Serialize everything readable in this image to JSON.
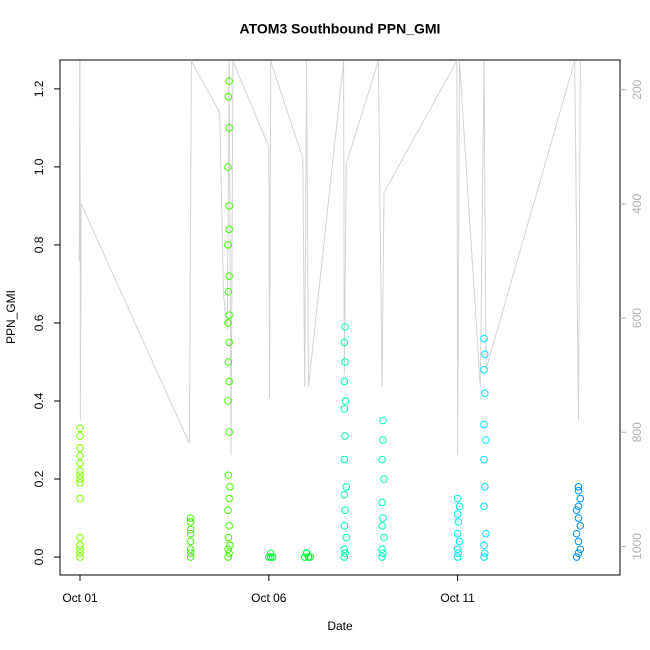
{
  "chart_data": {
    "type": "scatter",
    "title": "ATOM3 Southbound PPN_GMI",
    "x_label": "Date",
    "y_label": "PPN_GMI",
    "xlim": [
      0.47,
      15.3
    ],
    "xticks": [
      {
        "value": 1,
        "label": "Oct 01"
      },
      {
        "value": 6,
        "label": "Oct 06"
      },
      {
        "value": 11,
        "label": "Oct 11"
      }
    ],
    "ylim": [
      -0.046,
      1.274
    ],
    "yticks": [
      {
        "value": 0,
        "label": "0.0"
      },
      0.2,
      0.4,
      0.6,
      0.8,
      {
        "value": 1,
        "label": "1.0"
      },
      1.2
    ],
    "y2lim": [
      1050,
      148
    ],
    "y2ticks": [
      200,
      400,
      600,
      800,
      1000
    ],
    "series": [
      {
        "color": "#d3d3d3",
        "axis": "y2",
        "x": [
          0.98,
          0.99,
          1.0,
          1.01,
          1.03,
          3.9,
          3.92,
          3.95,
          4.7,
          4.8,
          4.9,
          4.95,
          5.0,
          5.05,
          6.0,
          6.02,
          6.05,
          6.9,
          6.95,
          7.0,
          7.05,
          7.98,
          8.0,
          8.05,
          8.9,
          9.0,
          9.05,
          10.98,
          11.0,
          11.05,
          11.6,
          11.7,
          11.75,
          14.1,
          14.2,
          14.25
        ],
        "values": [
          500,
          150,
          150,
          780,
          400,
          820,
          500,
          150,
          240,
          560,
          620,
          150,
          840,
          150,
          300,
          740,
          150,
          320,
          720,
          150,
          720,
          150,
          700,
          330,
          150,
          720,
          380,
          150,
          840,
          150,
          720,
          150,
          690,
          150,
          780,
          150
        ]
      },
      {
        "color": "#80ff00",
        "x": [
          1.0,
          1.0,
          1.0,
          1.0,
          1.0,
          1.0,
          1.0,
          1.0,
          1.0,
          1.0,
          1.0,
          1.0,
          1.0,
          1.0,
          1.0
        ],
        "values": [
          0.0,
          0.01,
          0.02,
          0.03,
          0.05,
          0.15,
          0.19,
          0.2,
          0.21,
          0.22,
          0.24,
          0.26,
          0.28,
          0.31,
          0.33
        ]
      },
      {
        "color": "#40ff00",
        "x": [
          3.93,
          3.93,
          3.93,
          3.93,
          3.93,
          3.93,
          3.93,
          3.93,
          4.92,
          4.95,
          4.92,
          4.97,
          4.93,
          4.95,
          4.92,
          4.95,
          4.97,
          4.93,
          4.95,
          4.92,
          4.95,
          4.93,
          4.95,
          4.92,
          4.95,
          4.93,
          4.95,
          4.92,
          4.95,
          4.95,
          4.92,
          4.95,
          4.93,
          4.95
        ],
        "values": [
          0.0,
          0.01,
          0.02,
          0.04,
          0.06,
          0.07,
          0.09,
          0.1,
          0.0,
          0.01,
          0.02,
          0.03,
          0.05,
          0.08,
          0.12,
          0.15,
          0.18,
          0.21,
          0.32,
          0.4,
          0.45,
          0.5,
          0.55,
          0.6,
          0.62,
          0.68,
          0.72,
          0.8,
          0.84,
          0.9,
          1.0,
          1.1,
          1.18,
          1.22
        ]
      },
      {
        "color": "#00ff30",
        "x": [
          6.0,
          6.05,
          6.1,
          6.05,
          6.95,
          7.0,
          7.05,
          7.1,
          7.0
        ],
        "values": [
          0.0,
          0.0,
          0.0,
          0.01,
          0.0,
          0.01,
          0.0,
          0.0,
          0.01
        ]
      },
      {
        "color": "#00ffa0",
        "x": [
          8.0,
          8.02,
          8.0,
          8.05,
          8.0,
          8.02,
          8.0,
          8.05,
          8.0,
          8.02,
          8.0,
          8.03,
          8.0,
          8.02,
          8.0,
          8.02
        ],
        "values": [
          0.0,
          0.01,
          0.02,
          0.05,
          0.08,
          0.12,
          0.16,
          0.18,
          0.25,
          0.31,
          0.38,
          0.4,
          0.45,
          0.5,
          0.55,
          0.59
        ]
      },
      {
        "color": "#00ffc0",
        "x": [
          9.0,
          9.02,
          9.0,
          9.05,
          9.0,
          9.02,
          9.0,
          9.05,
          9.0,
          9.02,
          9.02
        ],
        "values": [
          0.0,
          0.01,
          0.02,
          0.05,
          0.08,
          0.1,
          0.14,
          0.2,
          0.25,
          0.3,
          0.35
        ]
      },
      {
        "color": "#00f0f0",
        "x": [
          11.0,
          11.02,
          11.0,
          11.05,
          11.0,
          11.02,
          11.0,
          11.05,
          11.0
        ],
        "values": [
          0.0,
          0.01,
          0.02,
          0.04,
          0.06,
          0.09,
          0.11,
          0.13,
          0.15
        ]
      },
      {
        "color": "#00e0ff",
        "x": [
          11.7,
          11.72,
          11.7,
          11.75,
          11.7,
          11.72,
          11.7,
          11.75,
          11.7,
          11.72,
          11.7,
          11.72,
          11.7
        ],
        "values": [
          0.0,
          0.01,
          0.03,
          0.06,
          0.13,
          0.18,
          0.25,
          0.3,
          0.34,
          0.42,
          0.48,
          0.52,
          0.56
        ]
      },
      {
        "color": "#0090ff",
        "x": [
          14.15,
          14.2,
          14.25,
          14.2,
          14.15,
          14.25,
          14.2,
          14.15,
          14.2,
          14.25,
          14.2,
          14.2
        ],
        "values": [
          0.0,
          0.01,
          0.02,
          0.04,
          0.06,
          0.08,
          0.1,
          0.12,
          0.13,
          0.15,
          0.17,
          0.18
        ]
      }
    ]
  }
}
